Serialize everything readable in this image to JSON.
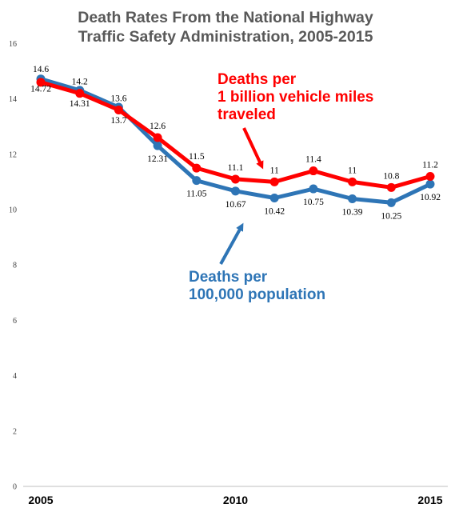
{
  "chart_data": {
    "type": "line",
    "title_lines": [
      "Death Rates From the National Highway",
      "Traffic Safety Administration, 2005-2015"
    ],
    "x": [
      2005,
      2006,
      2007,
      2008,
      2009,
      2010,
      2011,
      2012,
      2013,
      2014,
      2015
    ],
    "x_tick_labels": [
      "2005",
      "2010",
      "2015"
    ],
    "x_tick_values": [
      2005,
      2010,
      2015
    ],
    "y_ticks": [
      0,
      2,
      4,
      6,
      8,
      10,
      12,
      14,
      16
    ],
    "ylim": [
      0,
      16
    ],
    "grid": false,
    "series": [
      {
        "name": "Deaths per 100,000 population",
        "color": "#2E75B6",
        "values": [
          14.72,
          14.31,
          13.7,
          12.31,
          11.05,
          10.67,
          10.42,
          10.75,
          10.39,
          10.25,
          10.92
        ],
        "labels": [
          "14.72",
          "14.31",
          "13.7",
          "12.31",
          "11.05",
          "10.67",
          "10.42",
          "10.75",
          "10.39",
          "10.25",
          "10.92"
        ]
      },
      {
        "name": "Deaths per 1 billion vehicle miles traveled",
        "color": "#FF0000",
        "values": [
          14.6,
          14.2,
          13.6,
          12.6,
          11.5,
          11.1,
          11.0,
          11.4,
          11.0,
          10.8,
          11.2
        ],
        "labels": [
          "14.6",
          "14.2",
          "13.6",
          "12.6",
          "11.5",
          "11.1",
          "11",
          "11.4",
          "11",
          "10.8",
          "11.2"
        ]
      }
    ],
    "annotations": {
      "miles": {
        "lines": [
          "Deaths per",
          "1 billion  vehicle miles",
          "traveled"
        ],
        "color": "#FF0000"
      },
      "population": {
        "lines": [
          "Deaths per",
          "100,000 population"
        ],
        "color": "#2E75B6"
      }
    }
  }
}
